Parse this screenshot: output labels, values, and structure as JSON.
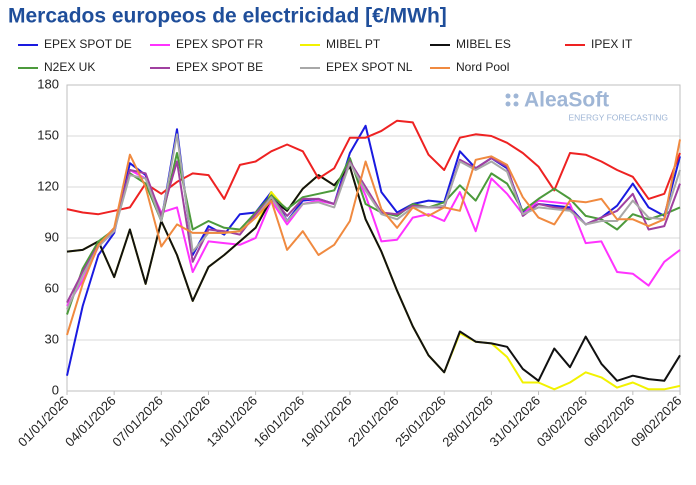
{
  "chart_data": {
    "type": "line",
    "title": "Mercados europeos de electricidad [€/MWh]",
    "watermark": {
      "name": "AleaSoft",
      "tagline": "ENERGY FORECASTING"
    },
    "categories": [
      "01/01/2026",
      null,
      null,
      "04/01/2026",
      null,
      null,
      "07/01/2026",
      null,
      null,
      "10/01/2026",
      null,
      null,
      "13/01/2026",
      null,
      null,
      "16/01/2026",
      null,
      null,
      "19/01/2026",
      null,
      null,
      "22/01/2026",
      null,
      null,
      "25/01/2026",
      null,
      null,
      "28/01/2026",
      null,
      null,
      "31/01/2026",
      null,
      null,
      "03/02/2026",
      null,
      null,
      "06/02/2026",
      null,
      null,
      "09/02/2026"
    ],
    "ylim": [
      0,
      180
    ],
    "yticks": [
      0,
      30,
      60,
      90,
      120,
      150,
      180
    ],
    "grid": true,
    "series": [
      {
        "name": "EPEX SPOT DE",
        "color": "#1a1ae0",
        "values": [
          9,
          50,
          80,
          93,
          134,
          127,
          100,
          154,
          80,
          97,
          92,
          104,
          105,
          117,
          100,
          112,
          113,
          110,
          140,
          156,
          117,
          105,
          110,
          112,
          111,
          141,
          131,
          137,
          131,
          105,
          110,
          109,
          108,
          98,
          102,
          109,
          122,
          108,
          103,
          138
        ]
      },
      {
        "name": "EPEX SPOT FR",
        "color": "#ff33ff",
        "values": [
          50,
          65,
          85,
          94,
          130,
          125,
          105,
          108,
          70,
          88,
          87,
          86,
          90,
          112,
          98,
          110,
          112,
          110,
          135,
          115,
          88,
          89,
          102,
          104,
          100,
          117,
          94,
          125,
          116,
          104,
          112,
          111,
          110,
          87,
          88,
          70,
          69,
          62,
          76,
          83
        ]
      },
      {
        "name": "MIBEL PT",
        "color": "#f2f200",
        "values": [
          82,
          83,
          88,
          67,
          95,
          63,
          100,
          80,
          53,
          73,
          80,
          88,
          96,
          117,
          106,
          119,
          127,
          121,
          132,
          101,
          82,
          59,
          38,
          21,
          11,
          34,
          29,
          28,
          20,
          5,
          5,
          1,
          5,
          11,
          8,
          2,
          5,
          1,
          1,
          3
        ]
      },
      {
        "name": "MIBEL ES",
        "color": "#111111",
        "values": [
          82,
          83,
          88,
          67,
          95,
          63,
          100,
          80,
          53,
          73,
          80,
          88,
          96,
          113,
          106,
          119,
          127,
          121,
          132,
          101,
          82,
          59,
          38,
          21,
          11,
          35,
          29,
          28,
          26,
          13,
          6,
          25,
          14,
          32,
          16,
          6,
          9,
          7,
          6,
          21
        ]
      },
      {
        "name": "IPEX IT",
        "color": "#ee2222",
        "values": [
          107,
          105,
          104,
          106,
          108,
          122,
          116,
          123,
          128,
          127,
          113,
          133,
          135,
          141,
          145,
          141,
          125,
          131,
          149,
          149,
          153,
          159,
          158,
          139,
          130,
          149,
          151,
          150,
          146,
          140,
          132,
          118,
          140,
          139,
          135,
          130,
          126,
          113,
          116,
          140
        ]
      },
      {
        "name": "N2EX UK",
        "color": "#4c9a3c",
        "values": [
          45,
          72,
          88,
          95,
          128,
          122,
          100,
          140,
          95,
          100,
          96,
          95,
          105,
          115,
          107,
          114,
          116,
          118,
          137,
          110,
          105,
          103,
          110,
          108,
          111,
          121,
          112,
          128,
          122,
          106,
          113,
          119,
          113,
          103,
          101,
          95,
          104,
          101,
          104,
          108
        ]
      },
      {
        "name": "EPEX SPOT BE",
        "color": "#a040a0",
        "values": [
          52,
          70,
          86,
          95,
          130,
          128,
          103,
          135,
          76,
          95,
          94,
          92,
          104,
          114,
          103,
          113,
          113,
          110,
          135,
          120,
          105,
          104,
          109,
          108,
          108,
          136,
          131,
          137,
          132,
          103,
          110,
          108,
          107,
          98,
          102,
          106,
          116,
          95,
          97,
          122
        ]
      },
      {
        "name": "EPEX SPOT NL",
        "color": "#a8a8a8",
        "values": [
          48,
          68,
          85,
          94,
          127,
          125,
          100,
          151,
          82,
          93,
          93,
          94,
          102,
          114,
          100,
          110,
          111,
          108,
          134,
          118,
          104,
          101,
          108,
          108,
          109,
          135,
          130,
          135,
          129,
          104,
          108,
          107,
          106,
          98,
          100,
          100,
          112,
          102,
          101,
          130
        ]
      },
      {
        "name": "Nord Pool",
        "color": "#f08a40",
        "values": [
          33,
          63,
          86,
          96,
          139,
          120,
          85,
          98,
          93,
          93,
          93,
          94,
          102,
          112,
          83,
          94,
          80,
          86,
          100,
          135,
          107,
          96,
          108,
          103,
          108,
          106,
          136,
          138,
          133,
          114,
          102,
          98,
          112,
          111,
          113,
          101,
          101,
          97,
          101,
          148
        ]
      }
    ]
  }
}
